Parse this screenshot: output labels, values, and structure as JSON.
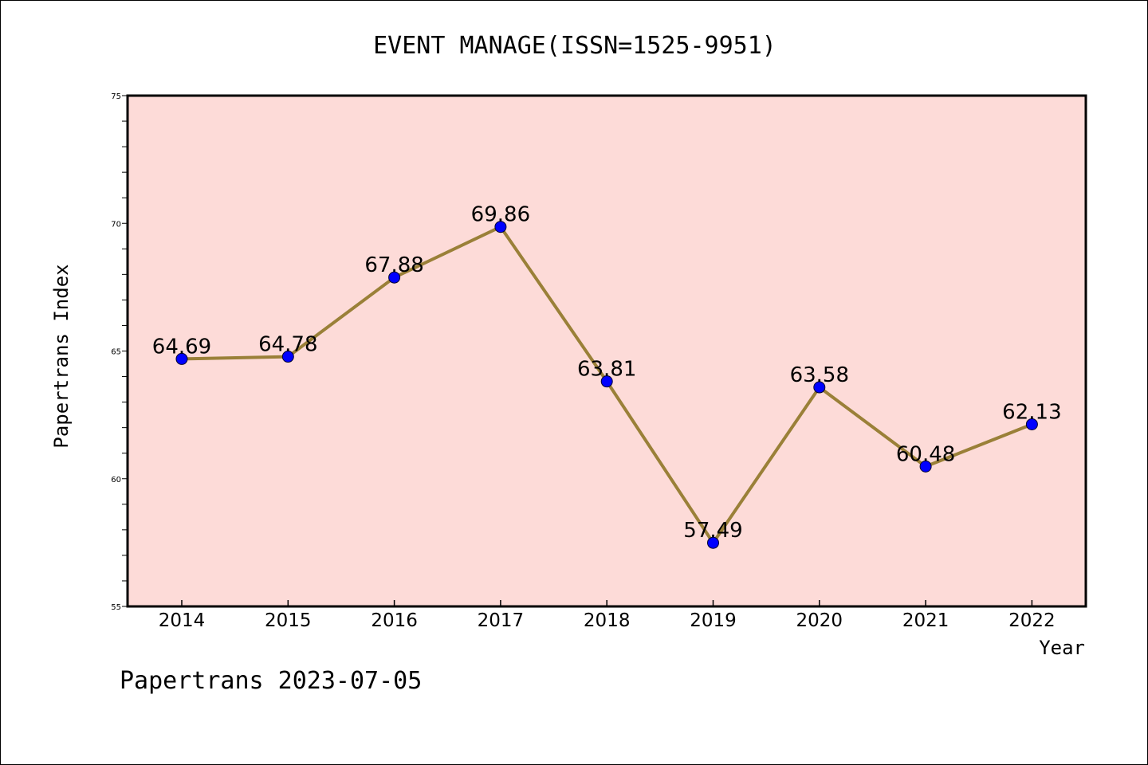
{
  "chart_data": {
    "type": "line",
    "title": "EVENT MANAGE(ISSN=1525-9951)",
    "xlabel": "Year",
    "ylabel": "Papertrans Index",
    "footer": "Papertrans 2023-07-05",
    "categories": [
      "2014",
      "2015",
      "2016",
      "2017",
      "2018",
      "2019",
      "2020",
      "2021",
      "2022"
    ],
    "values": [
      64.69,
      64.78,
      67.88,
      69.86,
      63.81,
      57.49,
      63.58,
      60.48,
      62.13
    ],
    "data_labels": [
      "64.69",
      "64.78",
      "67.88",
      "69.86",
      "63.81",
      "57.49",
      "63.58",
      "60.48",
      "62.13"
    ],
    "ylim": [
      55,
      75
    ],
    "y_ticks": [
      55,
      60,
      65,
      70,
      75
    ],
    "y_tick_labels": [
      "55",
      "60",
      "65",
      "70",
      "75"
    ],
    "y_minor_step": 1,
    "grid": false,
    "legend": "none",
    "colors": {
      "plot_background": "#fddbd8",
      "line": "#9a8038",
      "marker": "#0000ff",
      "axis": "#000000"
    }
  }
}
